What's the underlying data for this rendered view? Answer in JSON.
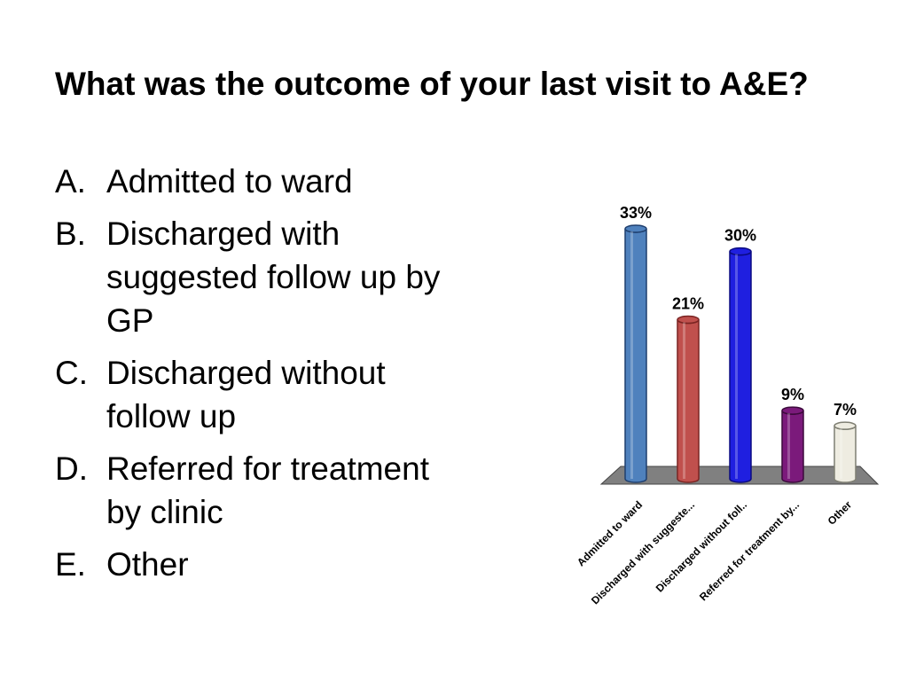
{
  "question": {
    "title": "What was the outcome of your last visit to A&E?",
    "options": [
      {
        "letter": "A.",
        "text": "Admitted to ward"
      },
      {
        "letter": "B.",
        "text": "Discharged with suggested follow up by GP"
      },
      {
        "letter": "C.",
        "text": "Discharged without follow up"
      },
      {
        "letter": "D.",
        "text": "Referred for treatment by clinic"
      },
      {
        "letter": "E.",
        "text": "Other"
      }
    ]
  },
  "chart_data": {
    "type": "bar",
    "categories": [
      "Admitted to ward",
      "Discharged with suggeste...",
      "Discharged without foll..",
      "Referred for treatment by...",
      "Other"
    ],
    "values": [
      33,
      21,
      30,
      9,
      7
    ],
    "data_labels": [
      "33%",
      "21%",
      "30%",
      "9%",
      "7%"
    ],
    "unit": "%",
    "ylim": [
      0,
      33
    ],
    "grid": false,
    "legend": "none",
    "colors": [
      "#4F81BD",
      "#C0504D",
      "#1F1FE0",
      "#7B1A7B",
      "#EEECE1"
    ],
    "edge_colors": [
      "#1F3F6E",
      "#7A2422",
      "#0A0A80",
      "#3C0A3C",
      "#7F7F73"
    ],
    "floor_color": "#808080"
  }
}
